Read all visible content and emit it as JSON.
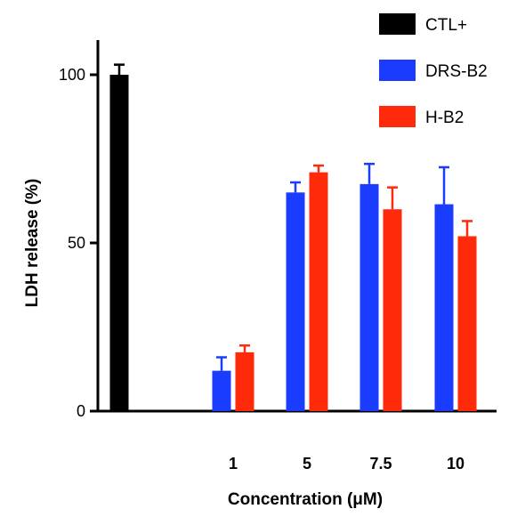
{
  "chart_data": {
    "type": "bar",
    "xlabel": "Concentration (μM)",
    "ylabel": "LDH release (%)",
    "ylim": [
      0,
      100
    ],
    "yticks": [
      "0",
      "50",
      "100"
    ],
    "ytick_values": [
      0,
      50,
      100
    ],
    "control": {
      "name": "CTL+",
      "value": 100,
      "error": 3,
      "color": "#000000"
    },
    "categories": [
      "1",
      "5",
      "7.5",
      "10"
    ],
    "series": [
      {
        "name": "DRS-B2",
        "color": "#1a3cff",
        "values": [
          12,
          65,
          67.5,
          61.5
        ],
        "errors": [
          4,
          3,
          6,
          11
        ]
      },
      {
        "name": "H-B2",
        "color": "#ff2a0a",
        "values": [
          17.5,
          71,
          60,
          52
        ],
        "errors": [
          2,
          2,
          6.5,
          4.5
        ]
      }
    ],
    "legend_position": "top-right"
  }
}
